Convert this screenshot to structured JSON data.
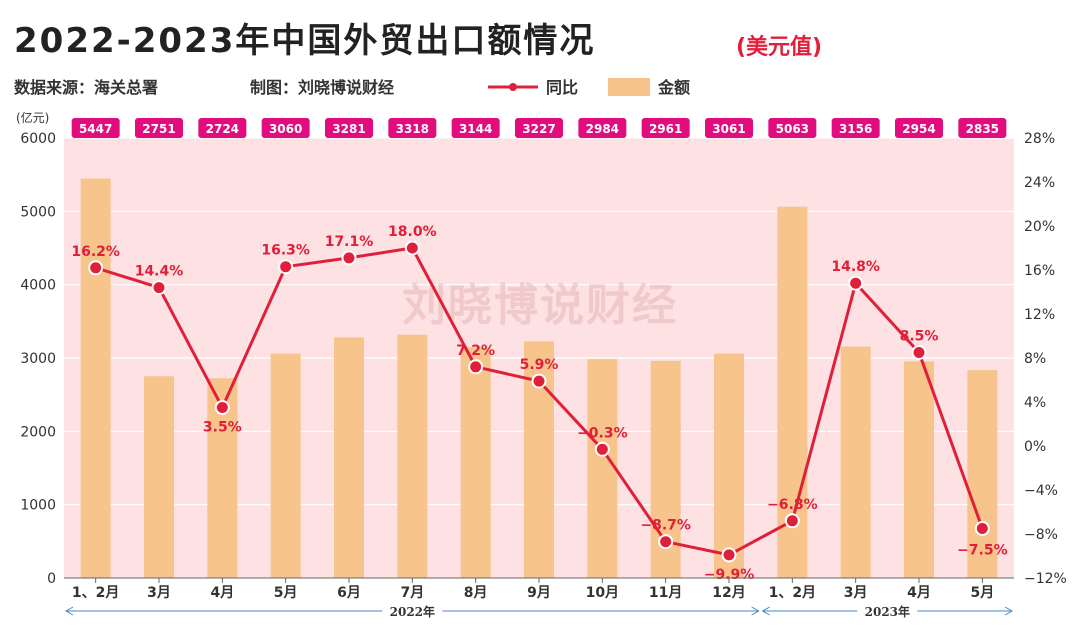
{
  "title": "2022-2023年中国外贸出口额情况",
  "subtitle": "(美元值)",
  "source": "数据来源：海关总署",
  "credit": "制图：刘晓博说财经",
  "watermark": "刘晓博说财经",
  "colors": {
    "plot_bg": "#fde1e3",
    "bar": "#f7c48c",
    "line": "#e0203a",
    "tag": "#e10d7e",
    "year_line": "#4a86c6"
  },
  "chart_data": {
    "type": "bar",
    "categories": [
      "1、2月",
      "3月",
      "4月",
      "5月",
      "6月",
      "7月",
      "8月",
      "9月",
      "10月",
      "11月",
      "12月",
      "1、2月",
      "3月",
      "4月",
      "5月"
    ],
    "series": [
      {
        "name": "金额",
        "type": "bar",
        "axis": "left",
        "values": [
          5447,
          2751,
          2724,
          3060,
          3281,
          3318,
          3144,
          3227,
          2984,
          2961,
          3061,
          5063,
          3156,
          2954,
          2835
        ]
      },
      {
        "name": "同比",
        "type": "line",
        "axis": "right",
        "values": [
          16.2,
          14.4,
          3.5,
          16.3,
          17.1,
          18.0,
          7.2,
          5.9,
          -0.3,
          -8.7,
          -9.9,
          -6.8,
          14.8,
          8.5,
          -7.5
        ],
        "labels": [
          "16.2%",
          "14.4%",
          "3.5%",
          "16.3%",
          "17.1%",
          "18.0%",
          "7.2%",
          "5.9%",
          "−0.3%",
          "−8.7%",
          "−9.9%",
          "−6.8%",
          "14.8%",
          "8.5%",
          "−7.5%"
        ]
      }
    ],
    "value_tags": [
      "5447",
      "2751",
      "2724",
      "3060",
      "3281",
      "3318",
      "3144",
      "3227",
      "2984",
      "2961",
      "3061",
      "5063",
      "3156",
      "2954",
      "2835"
    ],
    "left_axis": {
      "unit": "(亿元)",
      "ylim": [
        0,
        6000
      ],
      "ticks": [
        0,
        1000,
        2000,
        3000,
        4000,
        5000,
        6000
      ],
      "tick_labels": [
        "0",
        "1000",
        "2000",
        "3000",
        "4000",
        "5000",
        "6000"
      ]
    },
    "right_axis": {
      "ylim": [
        -12,
        28
      ],
      "ticks": [
        -12,
        -8,
        -4,
        0,
        4,
        8,
        12,
        16,
        20,
        24,
        28
      ],
      "tick_labels": [
        "−12%",
        "−8%",
        "−4%",
        "0%",
        "4%",
        "8%",
        "12%",
        "16%",
        "20%",
        "24%",
        "28%"
      ]
    },
    "year_groups": [
      {
        "label": "2022年",
        "start": 0,
        "end": 10
      },
      {
        "label": "2023年",
        "start": 11,
        "end": 14
      }
    ],
    "legend": {
      "position": "top",
      "items": [
        {
          "label": "同比",
          "kind": "line"
        },
        {
          "label": "金额",
          "kind": "bar"
        }
      ]
    },
    "grid": true
  }
}
